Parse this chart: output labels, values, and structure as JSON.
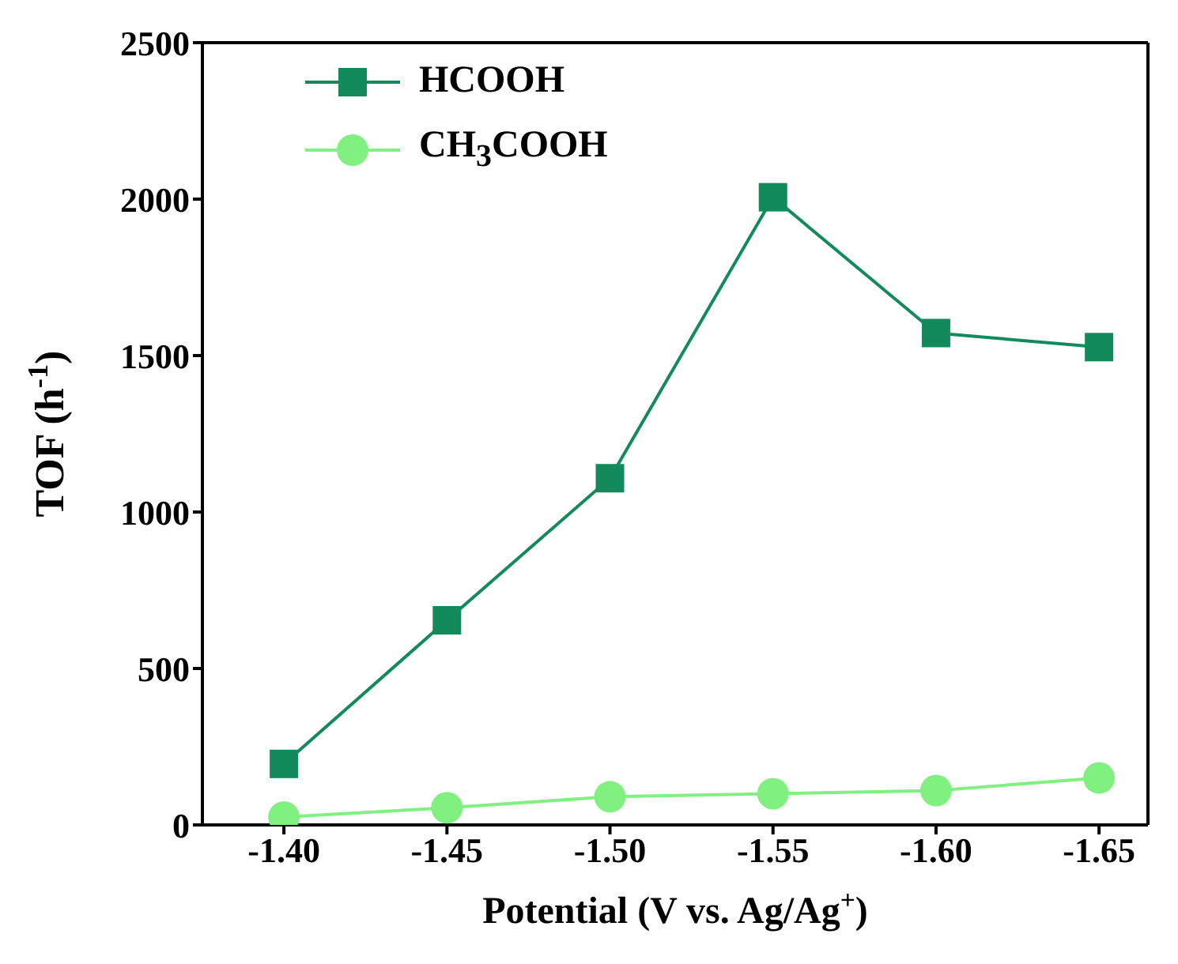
{
  "chart_data": {
    "type": "line",
    "xlabel": "Potential (V vs. Ag/Ag$^{+}$)",
    "ylabel": "TOF (h$^{-1}$)",
    "x": [
      -1.4,
      -1.45,
      -1.5,
      -1.55,
      -1.6,
      -1.65
    ],
    "xlim": [
      -1.375,
      -1.665
    ],
    "xticks": [
      {
        "value": -1.4,
        "label": "-1.40"
      },
      {
        "value": -1.45,
        "label": "-1.45"
      },
      {
        "value": -1.5,
        "label": "-1.50"
      },
      {
        "value": -1.55,
        "label": "-1.55"
      },
      {
        "value": -1.6,
        "label": "-1.60"
      },
      {
        "value": -1.65,
        "label": "-1.65"
      }
    ],
    "ylim": [
      0,
      2500
    ],
    "yticks": [
      0,
      500,
      1000,
      1500,
      2000,
      2500
    ],
    "legend": "top left",
    "series": [
      {
        "name": "HCOOH",
        "color": "#138a5c",
        "marker": "square",
        "values": [
          195,
          654,
          1108,
          2006,
          1572,
          1527
        ]
      },
      {
        "name": "CH$_{3}$COOH",
        "color": "#80f080",
        "marker": "circle",
        "values": [
          25,
          55,
          90,
          100,
          110,
          150
        ]
      }
    ]
  }
}
